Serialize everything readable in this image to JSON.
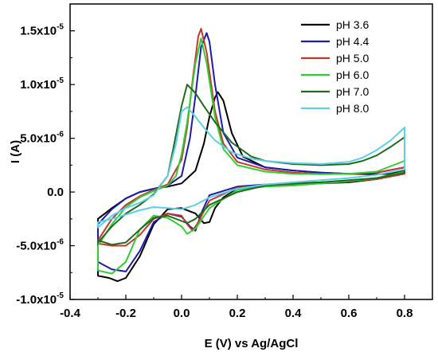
{
  "chart_data": {
    "type": "line",
    "title": "",
    "xlabel": "E (V) vs Ag/AgCl",
    "ylabel": "I (A)",
    "xlim": [
      -0.4,
      0.9
    ],
    "ylim": [
      -1e-05,
      1.75e-05
    ],
    "x_ticks": [
      -0.4,
      -0.2,
      0.0,
      0.2,
      0.4,
      0.6,
      0.8
    ],
    "x_tick_labels": [
      "-0.4",
      "-0.2",
      "0.0",
      "0.2",
      "0.4",
      "0.6",
      "0.8"
    ],
    "y_ticks": [
      -1e-05,
      -5e-06,
      0,
      5e-06,
      1e-05,
      1.5e-05
    ],
    "y_tick_labels": [
      {
        "mant": "-1.0x10",
        "exp": "-5"
      },
      {
        "mant": "-5.0x10",
        "exp": "-6"
      },
      {
        "mant": "0.0",
        "exp": ""
      },
      {
        "mant": "5.0x10",
        "exp": "-6"
      },
      {
        "mant": "1.0x10",
        "exp": "-5"
      },
      {
        "mant": "1.5x10",
        "exp": "-5"
      }
    ],
    "grid": false,
    "legend_position": "top-right",
    "series": [
      {
        "name": "pH 3.6",
        "color": "#000000",
        "x": [
          -0.3,
          -0.25,
          -0.2,
          -0.15,
          -0.1,
          -0.05,
          0.0,
          0.05,
          0.08,
          0.1,
          0.12,
          0.13,
          0.15,
          0.18,
          0.22,
          0.3,
          0.4,
          0.5,
          0.6,
          0.7,
          0.75,
          0.8,
          0.8,
          0.7,
          0.6,
          0.5,
          0.4,
          0.3,
          0.2,
          0.15,
          0.12,
          0.1,
          0.08,
          0.05,
          0.0,
          -0.05,
          -0.1,
          -0.15,
          -0.2,
          -0.23,
          -0.26,
          -0.3
        ],
        "y": [
          -2.5e-06,
          -1.5e-06,
          -6e-07,
          0.0,
          3e-07,
          5e-07,
          8e-07,
          2e-06,
          4.5e-06,
          7e-06,
          8.8e-06,
          9.3e-06,
          8.5e-06,
          5.5e-06,
          3.3e-06,
          2.3e-06,
          2e-06,
          1.8e-06,
          1.7e-06,
          1.65e-06,
          1.7e-06,
          2e-06,
          1.7e-06,
          1.2e-06,
          9e-07,
          8e-07,
          7e-07,
          6e-07,
          3e-07,
          -5e-07,
          -1.5e-06,
          -2.8e-06,
          -2.9e-06,
          -2e-06,
          -1.5e-06,
          -1.6e-06,
          -3e-06,
          -6e-06,
          -8e-06,
          -8.3e-06,
          -8e-06,
          -7.8e-06
        ]
      },
      {
        "name": "pH 4.4",
        "color": "#1c1ca8",
        "x": [
          -0.3,
          -0.25,
          -0.2,
          -0.15,
          -0.1,
          -0.05,
          0.0,
          0.03,
          0.05,
          0.07,
          0.09,
          0.1,
          0.12,
          0.15,
          0.2,
          0.3,
          0.4,
          0.5,
          0.6,
          0.7,
          0.8,
          0.8,
          0.7,
          0.6,
          0.5,
          0.4,
          0.3,
          0.2,
          0.1,
          0.07,
          0.05,
          0.03,
          0.0,
          -0.05,
          -0.1,
          -0.15,
          -0.2,
          -0.25,
          -0.3
        ],
        "y": [
          -3e-06,
          -1.6e-06,
          -6e-07,
          0.0,
          3e-07,
          6e-07,
          1.5e-06,
          5e-06,
          9e-06,
          1.35e-05,
          1.48e-05,
          1.4e-05,
          1e-05,
          5.5e-06,
          3.2e-06,
          2.3e-06,
          2e-06,
          1.8e-06,
          1.7e-06,
          1.8e-06,
          2.3e-06,
          1.8e-06,
          1.3e-06,
          1e-06,
          9e-07,
          8e-07,
          7e-07,
          5e-07,
          -3e-07,
          -2e-06,
          -3.6e-06,
          -3.2e-06,
          -2.3e-06,
          -2e-06,
          -2.8e-06,
          -5.5e-06,
          -7.4e-06,
          -7.2e-06,
          -6.5e-06
        ]
      },
      {
        "name": "pH 5.0",
        "color": "#c0392b",
        "x": [
          -0.3,
          -0.25,
          -0.2,
          -0.15,
          -0.1,
          -0.05,
          0.0,
          0.02,
          0.04,
          0.06,
          0.07,
          0.09,
          0.12,
          0.15,
          0.2,
          0.3,
          0.4,
          0.5,
          0.6,
          0.7,
          0.8,
          0.8,
          0.7,
          0.6,
          0.5,
          0.4,
          0.3,
          0.2,
          0.1,
          0.06,
          0.04,
          0.02,
          0.0,
          -0.05,
          -0.1,
          -0.15,
          -0.2,
          -0.25,
          -0.3
        ],
        "y": [
          -4.5e-06,
          -2.5e-06,
          -1.2e-06,
          -4e-07,
          2e-07,
          7e-07,
          3e-06,
          6e-06,
          1.05e-05,
          1.45e-05,
          1.52e-05,
          1.3e-05,
          7.5e-06,
          4.5e-06,
          2.8e-06,
          2.1e-06,
          1.8e-06,
          1.7e-06,
          1.7e-06,
          1.8e-06,
          2.3e-06,
          1.7e-06,
          1.2e-06,
          1e-06,
          8e-07,
          7e-07,
          6e-07,
          4e-07,
          -8e-07,
          -2.8e-06,
          -3.6e-06,
          -3e-06,
          -2.2e-06,
          -2e-06,
          -2.5e-06,
          -4e-06,
          -5e-06,
          -5e-06,
          -4.8e-06
        ]
      },
      {
        "name": "pH 6.0",
        "color": "#33cc33",
        "x": [
          -0.3,
          -0.25,
          -0.2,
          -0.15,
          -0.1,
          -0.05,
          -0.02,
          0.0,
          0.02,
          0.05,
          0.07,
          0.09,
          0.12,
          0.15,
          0.2,
          0.3,
          0.4,
          0.5,
          0.6,
          0.7,
          0.8,
          0.8,
          0.7,
          0.6,
          0.5,
          0.4,
          0.3,
          0.2,
          0.1,
          0.05,
          0.02,
          0.0,
          -0.05,
          -0.1,
          -0.15,
          -0.2,
          -0.25,
          -0.3
        ],
        "y": [
          -5e-06,
          -3e-06,
          -1.4e-06,
          -5e-07,
          1e-07,
          6e-07,
          1.5e-06,
          3.5e-06,
          6.5e-06,
          1.2e-05,
          1.43e-05,
          1.2e-05,
          7e-06,
          4e-06,
          2.5e-06,
          1.9e-06,
          1.7e-06,
          1.65e-06,
          1.7e-06,
          1.9e-06,
          2.9e-06,
          1.9e-06,
          1.3e-06,
          1e-06,
          8e-07,
          6e-07,
          5e-07,
          2e-07,
          -1.5e-06,
          -3.4e-06,
          -3.9e-06,
          -3.2e-06,
          -2.4e-06,
          -2.2e-06,
          -3.5e-06,
          -6.5e-06,
          -7.6e-06,
          -7.3e-06
        ]
      },
      {
        "name": "pH 7.0",
        "color": "#1e6b1e",
        "x": [
          -0.3,
          -0.25,
          -0.2,
          -0.15,
          -0.1,
          -0.05,
          -0.03,
          0.0,
          0.02,
          0.05,
          0.08,
          0.12,
          0.18,
          0.25,
          0.3,
          0.4,
          0.5,
          0.6,
          0.65,
          0.7,
          0.75,
          0.8,
          0.8,
          0.7,
          0.6,
          0.5,
          0.4,
          0.3,
          0.2,
          0.1,
          0.05,
          0.02,
          0.0,
          -0.05,
          -0.1,
          -0.15,
          -0.2,
          -0.25,
          -0.3
        ],
        "y": [
          -4.7e-06,
          -3.2e-06,
          -2e-06,
          -1.2e-06,
          -2e-07,
          1.5e-06,
          4e-06,
          8e-06,
          1e-05,
          9.2e-06,
          8e-06,
          6.5e-06,
          4.6e-06,
          3.3e-06,
          2.9e-06,
          2.6e-06,
          2.5e-06,
          2.6e-06,
          2.9e-06,
          3.4e-06,
          4.2e-06,
          5.1e-06,
          1.8e-06,
          1.3e-06,
          1.1e-06,
          9e-07,
          8e-07,
          6e-07,
          0.0,
          -1.2e-06,
          -2.5e-06,
          -2.9e-06,
          -2.7e-06,
          -2.2e-06,
          -2.4e-06,
          -3.5e-06,
          -4.7e-06,
          -4.9e-06,
          -4.5e-06
        ]
      },
      {
        "name": "pH 8.0",
        "color": "#5bd0e6",
        "x": [
          -0.3,
          -0.25,
          -0.2,
          -0.15,
          -0.1,
          -0.05,
          -0.02,
          0.0,
          0.02,
          0.05,
          0.08,
          0.12,
          0.18,
          0.25,
          0.3,
          0.4,
          0.5,
          0.6,
          0.65,
          0.7,
          0.75,
          0.8,
          0.8,
          0.7,
          0.6,
          0.5,
          0.4,
          0.3,
          0.2,
          0.1,
          0.05,
          0.0,
          -0.05,
          -0.1,
          -0.15,
          -0.2,
          -0.25,
          -0.3
        ],
        "y": [
          -3.3e-06,
          -2.2e-06,
          -1.5e-06,
          -1e-06,
          -3e-07,
          1.5e-06,
          4.5e-06,
          7.5e-06,
          7.9e-06,
          7e-06,
          6e-06,
          4.8e-06,
          3.7e-06,
          3.1e-06,
          2.9e-06,
          2.7e-06,
          2.6e-06,
          2.8e-06,
          3.2e-06,
          3.9e-06,
          4.8e-06,
          6e-06,
          2.1e-06,
          1.6e-06,
          1.3e-06,
          1.1e-06,
          9e-07,
          7e-07,
          3e-07,
          -5e-07,
          -1.2e-06,
          -1.6e-06,
          -1.5e-06,
          -1.4e-06,
          -1.7e-06,
          -2.1e-06,
          -2.5e-06,
          -2.8e-06
        ]
      }
    ]
  }
}
